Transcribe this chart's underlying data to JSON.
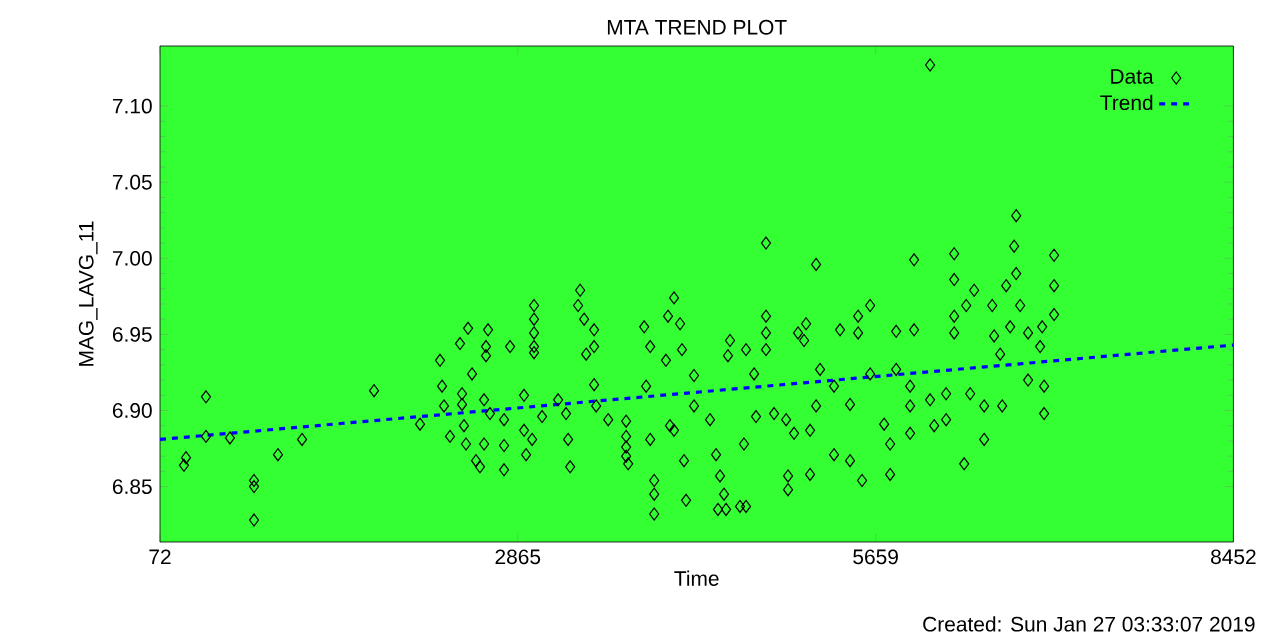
{
  "chart_data": {
    "type": "scatter",
    "title": "MTA TREND PLOT",
    "xlabel": "Time",
    "ylabel": "MAG_LAVG_11",
    "annotations": [
      "Created: Sun Jan 27 03:33:07 2019"
    ],
    "xlim": [
      72,
      8452
    ],
    "ylim": [
      6.8136,
      7.1395
    ],
    "xticks": [
      72,
      2865,
      5659,
      8452
    ],
    "yticks": [
      6.85,
      {
        "value": 6.9,
        "label": "6.90"
      },
      6.95,
      {
        "value": 7.0,
        "label": "7.00"
      },
      7.05,
      {
        "value": 7.1,
        "label": "7.10"
      }
    ],
    "legend": "top right",
    "grid": false,
    "series": [
      {
        "name": "Data",
        "marker": "diamond",
        "color": "#000000",
        "x": [
          259,
          275,
          431,
          431,
          618,
          806,
          806,
          806,
          993,
          1181,
          1743,
          2102,
          2258,
          2274,
          2289,
          2336,
          2414,
          2430,
          2430,
          2445,
          2461,
          2477,
          2508,
          2539,
          2570,
          2617,
          2617,
          2633,
          2602,
          2602,
          2648,
          2758,
          2758,
          2805,
          2758,
          2914,
          2914,
          2930,
          2992,
          2992,
          2992,
          2992,
          2992,
          2977,
          3055,
          3180,
          3242,
          3258,
          3274,
          3352,
          3336,
          3383,
          3399,
          3461,
          3461,
          3461,
          3477,
          3571,
          3711,
          3711,
          3711,
          3727,
          3711,
          3852,
          3899,
          3867,
          3899,
          3930,
          3930,
          3930,
          4022,
          4038,
          4085,
          4132,
          4147,
          4085,
          4053,
          4179,
          4163,
          4241,
          4241,
          4366,
          4413,
          4428,
          4491,
          4475,
          4444,
          4522,
          4506,
          4647,
          4600,
          4647,
          4631,
          4710,
          4725,
          4803,
          4803,
          4803,
          4803,
          4866,
          4960,
          4975,
          4975,
          5022,
          5053,
          5100,
          5116,
          5147,
          5147,
          5194,
          5194,
          5225,
          5334,
          5334,
          5381,
          5459,
          5459,
          5522,
          5522,
          5553,
          5616,
          5616,
          5725,
          5772,
          5772,
          5819,
          5819,
          5928,
          5928,
          5928,
          5959,
          5959,
          6084,
          6084,
          6116,
          6209,
          6209,
          6272,
          6272,
          6272,
          6272,
          6350,
          6366,
          6428,
          6397,
          6506,
          6506,
          6569,
          6584,
          6631,
          6647,
          6678,
          6709,
          6740,
          6756,
          6756,
          6787,
          6849,
          6849,
          6943,
          6959,
          6974,
          6974,
          7052,
          7052,
          7052
        ],
        "values": [
          6.864,
          6.869,
          6.909,
          6.883,
          6.882,
          6.854,
          6.85,
          6.828,
          6.871,
          6.881,
          6.913,
          6.891,
          6.933,
          6.916,
          6.903,
          6.883,
          6.944,
          6.911,
          6.904,
          6.89,
          6.878,
          6.954,
          6.924,
          6.867,
          6.863,
          6.942,
          6.936,
          6.953,
          6.907,
          6.878,
          6.898,
          6.877,
          6.861,
          6.942,
          6.894,
          6.91,
          6.887,
          6.871,
          6.969,
          6.96,
          6.951,
          6.942,
          6.938,
          6.881,
          6.896,
          6.907,
          6.898,
          6.881,
          6.863,
          6.979,
          6.969,
          6.96,
          6.937,
          6.953,
          6.942,
          6.917,
          6.903,
          6.894,
          6.883,
          6.876,
          6.87,
          6.865,
          6.893,
          6.955,
          6.942,
          6.916,
          6.881,
          6.854,
          6.845,
          6.832,
          6.933,
          6.962,
          6.974,
          6.957,
          6.94,
          6.887,
          6.89,
          6.841,
          6.867,
          6.903,
          6.923,
          6.894,
          6.871,
          6.835,
          6.835,
          6.845,
          6.857,
          6.946,
          6.936,
          6.94,
          6.837,
          6.837,
          6.878,
          6.924,
          6.896,
          7.01,
          6.962,
          6.951,
          6.94,
          6.898,
          6.894,
          6.857,
          6.848,
          6.885,
          6.951,
          6.946,
          6.957,
          6.887,
          6.858,
          6.996,
          6.903,
          6.927,
          6.916,
          6.871,
          6.953,
          6.904,
          6.867,
          6.962,
          6.951,
          6.854,
          6.969,
          6.924,
          6.891,
          6.878,
          6.858,
          6.952,
          6.927,
          6.916,
          6.903,
          6.885,
          6.953,
          6.999,
          7.127,
          6.907,
          6.89,
          6.911,
          6.894,
          7.003,
          6.986,
          6.962,
          6.951,
          6.865,
          6.969,
          6.979,
          6.911,
          6.903,
          6.881,
          6.969,
          6.949,
          6.937,
          6.903,
          6.982,
          6.955,
          7.008,
          7.028,
          6.99,
          6.969,
          6.92,
          6.951,
          6.942,
          6.955,
          6.916,
          6.898,
          7.002,
          6.982,
          6.963
        ]
      },
      {
        "name": "Trend",
        "type": "line",
        "line_style": "dashed",
        "color": "#0000ff",
        "x": [
          72,
          8452
        ],
        "values": [
          6.881,
          6.943
        ]
      }
    ]
  }
}
